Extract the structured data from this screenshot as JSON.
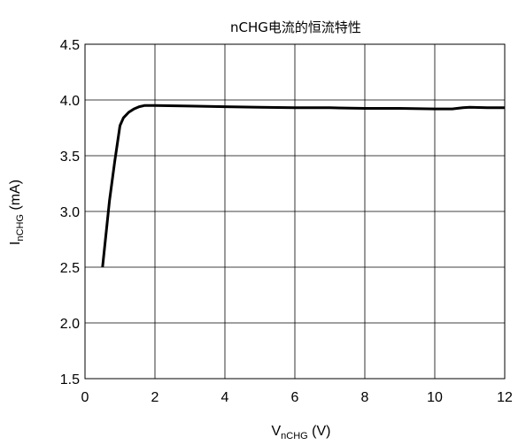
{
  "chart_data": {
    "type": "line",
    "title": "nCHG电流的恒流特性",
    "xlabel": {
      "main": "V",
      "sub": "nCHG",
      "unit": "(V)"
    },
    "ylabel": {
      "main": "I",
      "sub": "nCHG",
      "unit": "(mA)"
    },
    "xlim": [
      0,
      12
    ],
    "ylim": [
      1.5,
      4.5
    ],
    "xticks": [
      "0",
      "2",
      "4",
      "6",
      "8",
      "10",
      "12"
    ],
    "yticks": [
      "1.5",
      "2.0",
      "2.5",
      "3.0",
      "3.5",
      "4.0",
      "4.5"
    ],
    "grid": true,
    "series": [
      {
        "color": "#000000",
        "x": [
          0.5,
          0.7,
          0.85,
          1.0,
          1.1,
          1.25,
          1.4,
          1.55,
          1.7,
          2.0,
          3.0,
          4.0,
          5.0,
          6.0,
          7.0,
          8.0,
          9.0,
          10.0,
          10.5,
          10.8,
          11.0,
          11.5,
          12.0
        ],
        "y": [
          2.5,
          3.1,
          3.45,
          3.77,
          3.84,
          3.89,
          3.92,
          3.94,
          3.95,
          3.95,
          3.945,
          3.94,
          3.935,
          3.93,
          3.93,
          3.925,
          3.925,
          3.92,
          3.92,
          3.93,
          3.935,
          3.93,
          3.93
        ]
      }
    ]
  }
}
